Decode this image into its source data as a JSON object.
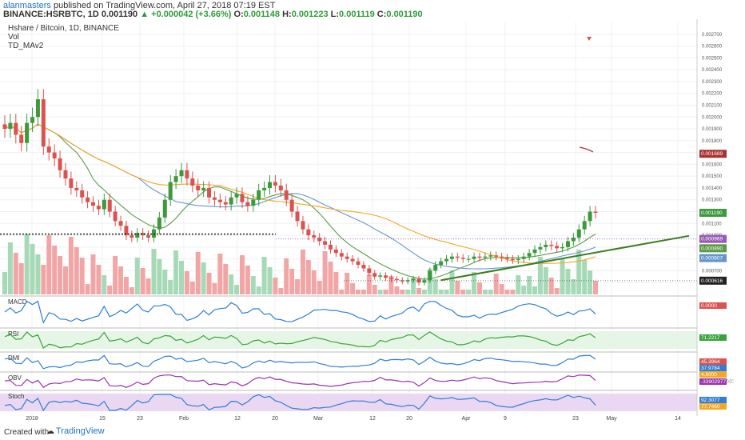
{
  "header": {
    "author": "alanmasters",
    "published": "published on TradingView.com, April 27, 2018 07:19 EST",
    "symbol": "BINANCE:HSRBTC, 1D",
    "last": "0.001190",
    "change": "+0.000042 (+3.66%)",
    "open_label": "O:",
    "open": "0.001148",
    "high_label": "H:",
    "high": "0.001223",
    "low_label": "L:",
    "low": "0.001119",
    "close_label": "C:",
    "close": "0.001190"
  },
  "legend": {
    "title": "Hshare / Bitcoin, 1D, BINANCE",
    "vol": "Vol",
    "td": "TD_MAv2"
  },
  "colors": {
    "up": "#3c9a3c",
    "down": "#d9534f",
    "vol_up": "#a6d9b6",
    "vol_down": "#f2a5a5",
    "ma_green": "#5a9a45",
    "ma_blue": "#6496c8",
    "ma_orange": "#f5a623",
    "macd": "#2f7ed8",
    "signal": "#f5a623",
    "rsi": "#39a339",
    "obv": "#9b30b0"
  },
  "chart_data": [
    {
      "type": "candlestick",
      "title": "Hshare / Bitcoin, 1D, BINANCE",
      "ylim": [
        0.0005,
        0.0028
      ],
      "y_ticks": [
        "0.002700",
        "0.002600",
        "0.002500",
        "0.002400",
        "0.002300",
        "0.002200",
        "0.002100",
        "0.002000",
        "0.001900",
        "0.001800",
        "0.001700",
        "0.001600",
        "0.001500",
        "0.001400",
        "0.001300",
        "0.001200",
        "0.001100",
        "0.001000",
        "0.000900",
        "0.000800",
        "0.000700",
        "0.000600"
      ],
      "x_ticks": [
        "2018",
        "15",
        "23",
        "Feb",
        "12",
        "20",
        "Mar",
        "12",
        "20",
        "Apr",
        "9",
        "23",
        "May",
        "14"
      ],
      "price_labels": [
        {
          "text": "0.001689",
          "value": 0.001689,
          "color": "#a83232"
        },
        {
          "text": "0.001190",
          "value": 0.00119,
          "color": "#3c9a3c"
        },
        {
          "text": "0.000969",
          "value": 0.000969,
          "color": "#9b59b6"
        },
        {
          "text": "0.000890",
          "value": 0.00089,
          "color": "#5a9a45"
        },
        {
          "text": "0.000807",
          "value": 0.000807,
          "color": "#6496c8"
        },
        {
          "text": "0.000616",
          "value": 0.000616,
          "color": "#222222"
        }
      ],
      "support_line": 0.00101,
      "closes": [
        0.0019,
        0.00195,
        0.00185,
        0.00178,
        0.00195,
        0.002,
        0.00215,
        0.00175,
        0.0017,
        0.00165,
        0.00155,
        0.00148,
        0.0014,
        0.00138,
        0.00132,
        0.00128,
        0.00125,
        0.00122,
        0.0013,
        0.0012,
        0.00112,
        0.00108,
        0.001,
        0.00098,
        0.00102,
        0.001,
        0.00098,
        0.00105,
        0.00115,
        0.0013,
        0.00145,
        0.0015,
        0.00155,
        0.00148,
        0.00142,
        0.00138,
        0.0014,
        0.00132,
        0.0013,
        0.00128,
        0.00126,
        0.00132,
        0.00135,
        0.00128,
        0.00125,
        0.0013,
        0.00138,
        0.0014,
        0.00145,
        0.00142,
        0.00138,
        0.0013,
        0.0012,
        0.00112,
        0.00105,
        0.001,
        0.00098,
        0.00095,
        0.00092,
        0.00088,
        0.00085,
        0.00082,
        0.0008,
        0.00078,
        0.00075,
        0.00072,
        0.00068,
        0.00065,
        0.00066,
        0.00064,
        0.00063,
        0.00062,
        0.00061,
        0.00062,
        0.00063,
        0.0006,
        0.00062,
        0.0007,
        0.00075,
        0.00078,
        0.0008,
        0.00082,
        0.00081,
        0.0008,
        0.0008,
        0.00082,
        0.00081,
        0.00082,
        0.00083,
        0.00082,
        0.00081,
        0.0008,
        0.00079,
        0.0008,
        0.00082,
        0.00085,
        0.00088,
        0.0009,
        0.00092,
        0.00091,
        0.00089,
        0.0009,
        0.00095,
        0.00098,
        0.00105,
        0.00112,
        0.0012,
        0.00119
      ]
    },
    {
      "type": "line",
      "title": "MACD",
      "value_label": "0.0000"
    },
    {
      "type": "line",
      "title": "RSI",
      "y_ticks": [
        "40.0000"
      ],
      "value_label": "71.2217"
    },
    {
      "type": "line",
      "title": "DMI",
      "value_labels": [
        "45.3964",
        "37.9784",
        "4.8000"
      ]
    },
    {
      "type": "line",
      "title": "OBV",
      "value_labels": [
        "-5000000.0000",
        "-33902977.3400"
      ]
    },
    {
      "type": "line",
      "title": "Stoch",
      "value_labels": [
        "92.3077",
        "77.7460"
      ],
      "y_ticks": [
        "0.0000"
      ]
    }
  ],
  "footer": {
    "created_with": "Created with",
    "brand": "TradingView"
  }
}
